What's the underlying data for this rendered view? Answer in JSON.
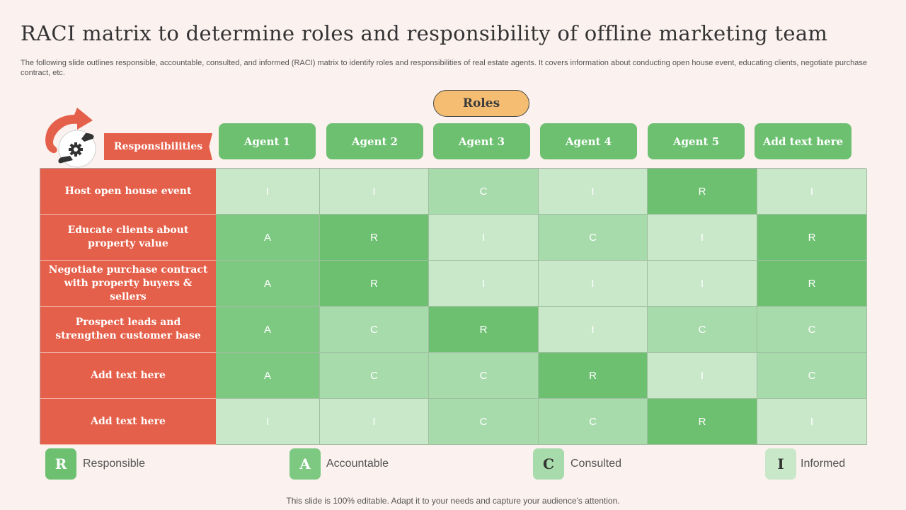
{
  "title": "RACI matrix to determine roles and responsibility of offline marketing team",
  "subtitle": "The following slide outlines responsible, accountable, consulted, and informed (RACI) matrix to identify roles and responsibilities of real estate agents. It covers information about conducting open house event, educating clients, negotiate purchase contract, etc.",
  "roles_label": "Roles",
  "responsibilities_label": "Responsibilities",
  "agents": [
    "Agent 1",
    "Agent 2",
    "Agent 3",
    "Agent 4",
    "Agent 5",
    "Add text here"
  ],
  "rows": [
    {
      "label": "Host open house event",
      "values": [
        "I",
        "I",
        "C",
        "I",
        "R",
        "I"
      ]
    },
    {
      "label": "Educate clients about property value",
      "values": [
        "A",
        "R",
        "I",
        "C",
        "I",
        "R"
      ]
    },
    {
      "label": "Negotiate purchase contract with property buyers & sellers",
      "values": [
        "A",
        "R",
        "I",
        "I",
        "I",
        "R"
      ]
    },
    {
      "label": "Prospect leads and strengthen customer base",
      "values": [
        "A",
        "C",
        "R",
        "I",
        "C",
        "C"
      ]
    },
    {
      "label": "Add text here",
      "values": [
        "A",
        "C",
        "C",
        "R",
        "I",
        "C"
      ]
    },
    {
      "label": "Add text here",
      "values": [
        "I",
        "I",
        "C",
        "C",
        "R",
        "I"
      ]
    }
  ],
  "legend": [
    {
      "letter": "R",
      "label": "Responsible"
    },
    {
      "letter": "A",
      "label": "Accountable"
    },
    {
      "letter": "C",
      "label": "Consulted"
    },
    {
      "letter": "I",
      "label": "Informed"
    }
  ],
  "colors": {
    "R": "#6cc070",
    "A": "#7dc982",
    "C": "#a8dbab",
    "I": "#c8e8c9",
    "legend_I_text": "#555555"
  },
  "logo_icon": "hand-gear-cycle-icon",
  "footer": "This slide is 100% editable. Adapt it to your needs and capture your audience's attention."
}
